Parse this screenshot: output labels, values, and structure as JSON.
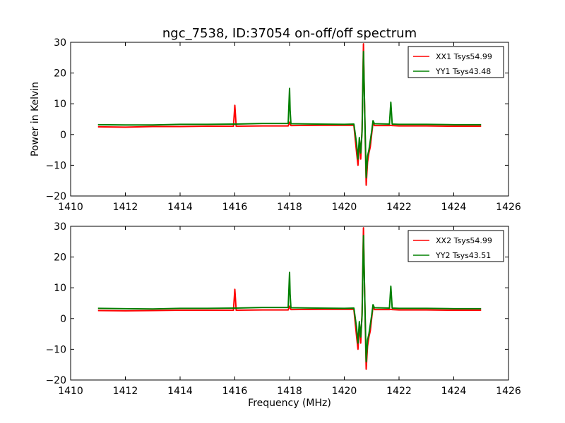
{
  "figure": {
    "title": "ngc_7538, ID:37054 on-off/off spectrum",
    "ylabel": "Power in Kelvin",
    "xlabel": "Frequency (MHz)"
  },
  "chart_data": [
    {
      "type": "line",
      "title": "ngc_7538, ID:37054 on-off/off spectrum",
      "xlabel": "",
      "ylabel": "Power in Kelvin",
      "xlim": [
        1410,
        1426
      ],
      "ylim": [
        -20,
        30
      ],
      "xticks": [
        "1410",
        "1412",
        "1414",
        "1416",
        "1418",
        "1420",
        "1422",
        "1424",
        "1426"
      ],
      "yticks": [
        "30",
        "20",
        "10",
        "0",
        "−10",
        "−20"
      ],
      "grid": false,
      "legend_position": "top-right",
      "series": [
        {
          "name": "XX1 Tsys54.99",
          "color": "#ff0000",
          "x": [
            1411.0,
            1412.0,
            1413.0,
            1414.0,
            1415.0,
            1415.95,
            1416.0,
            1416.05,
            1417.0,
            1417.95,
            1418.0,
            1418.05,
            1419.0,
            1420.0,
            1420.35,
            1420.45,
            1420.5,
            1420.55,
            1420.6,
            1420.65,
            1420.7,
            1420.75,
            1420.8,
            1420.85,
            1420.9,
            1420.95,
            1421.0,
            1421.05,
            1421.1,
            1421.65,
            1421.7,
            1421.75,
            1422.0,
            1423.0,
            1424.0,
            1425.0
          ],
          "values": [
            2.5,
            2.4,
            2.6,
            2.6,
            2.7,
            2.7,
            9.5,
            2.7,
            2.8,
            2.8,
            4.0,
            2.9,
            3.0,
            3.0,
            3.0,
            -6.0,
            -10.0,
            -2.0,
            -8.0,
            2.0,
            29.5,
            5.0,
            -16.5,
            -9.0,
            -6.0,
            -4.0,
            0.0,
            4.0,
            2.9,
            2.9,
            3.0,
            2.9,
            2.8,
            2.8,
            2.7,
            2.7
          ]
        },
        {
          "name": "YY1 Tsys43.48",
          "color": "#008000",
          "x": [
            1411.0,
            1412.0,
            1413.0,
            1414.0,
            1415.0,
            1415.95,
            1416.0,
            1416.05,
            1417.0,
            1417.95,
            1418.0,
            1418.02,
            1418.05,
            1419.0,
            1420.0,
            1420.35,
            1420.45,
            1420.5,
            1420.55,
            1420.6,
            1420.65,
            1420.7,
            1420.75,
            1420.8,
            1420.85,
            1420.9,
            1420.95,
            1421.0,
            1421.05,
            1421.1,
            1421.65,
            1421.7,
            1421.75,
            1422.0,
            1423.0,
            1424.0,
            1425.0
          ],
          "values": [
            3.2,
            3.1,
            3.1,
            3.3,
            3.3,
            3.4,
            3.4,
            3.4,
            3.6,
            3.6,
            15.0,
            8.0,
            3.5,
            3.4,
            3.3,
            3.4,
            -3.0,
            -8.0,
            -1.0,
            -6.0,
            1.0,
            27.0,
            6.0,
            -14.0,
            -7.0,
            -5.0,
            -2.0,
            1.0,
            4.5,
            3.5,
            3.4,
            10.5,
            3.4,
            3.3,
            3.3,
            3.2,
            3.2
          ]
        }
      ]
    },
    {
      "type": "line",
      "title": "",
      "xlabel": "Frequency (MHz)",
      "ylabel": "",
      "xlim": [
        1410,
        1426
      ],
      "ylim": [
        -20,
        30
      ],
      "xticks": [
        "1410",
        "1412",
        "1414",
        "1416",
        "1418",
        "1420",
        "1422",
        "1424",
        "1426"
      ],
      "yticks": [
        "30",
        "20",
        "10",
        "0",
        "−10",
        "−20"
      ],
      "grid": false,
      "legend_position": "top-right",
      "series": [
        {
          "name": "XX2 Tsys54.99",
          "color": "#ff0000",
          "x": [
            1411.0,
            1412.0,
            1413.0,
            1414.0,
            1415.0,
            1415.95,
            1416.0,
            1416.05,
            1417.0,
            1417.95,
            1418.0,
            1418.05,
            1419.0,
            1420.0,
            1420.35,
            1420.45,
            1420.5,
            1420.55,
            1420.6,
            1420.65,
            1420.7,
            1420.75,
            1420.8,
            1420.85,
            1420.9,
            1420.95,
            1421.0,
            1421.05,
            1421.1,
            1421.65,
            1421.7,
            1421.75,
            1422.0,
            1423.0,
            1424.0,
            1425.0
          ],
          "values": [
            2.6,
            2.5,
            2.6,
            2.7,
            2.7,
            2.7,
            9.5,
            2.7,
            2.8,
            2.8,
            4.0,
            2.9,
            3.0,
            3.0,
            3.0,
            -6.0,
            -10.0,
            -2.0,
            -8.0,
            2.0,
            29.5,
            5.0,
            -16.5,
            -9.0,
            -6.0,
            -4.0,
            0.0,
            4.0,
            2.9,
            2.9,
            3.0,
            2.9,
            2.8,
            2.8,
            2.7,
            2.7
          ]
        },
        {
          "name": "YY2 Tsys43.51",
          "color": "#008000",
          "x": [
            1411.0,
            1412.0,
            1413.0,
            1414.0,
            1415.0,
            1415.95,
            1416.0,
            1416.05,
            1417.0,
            1417.95,
            1418.0,
            1418.02,
            1418.05,
            1419.0,
            1420.0,
            1420.35,
            1420.45,
            1420.5,
            1420.55,
            1420.6,
            1420.65,
            1420.7,
            1420.75,
            1420.8,
            1420.85,
            1420.9,
            1420.95,
            1421.0,
            1421.05,
            1421.1,
            1421.65,
            1421.7,
            1421.75,
            1422.0,
            1423.0,
            1424.0,
            1425.0
          ],
          "values": [
            3.3,
            3.2,
            3.1,
            3.3,
            3.3,
            3.4,
            3.4,
            3.4,
            3.6,
            3.6,
            15.0,
            8.0,
            3.5,
            3.4,
            3.3,
            3.4,
            -3.0,
            -8.0,
            -1.0,
            -6.0,
            1.0,
            27.0,
            6.0,
            -14.0,
            -7.0,
            -5.0,
            -2.0,
            1.0,
            4.5,
            3.5,
            3.4,
            10.5,
            3.4,
            3.3,
            3.3,
            3.2,
            3.2
          ]
        }
      ]
    }
  ]
}
